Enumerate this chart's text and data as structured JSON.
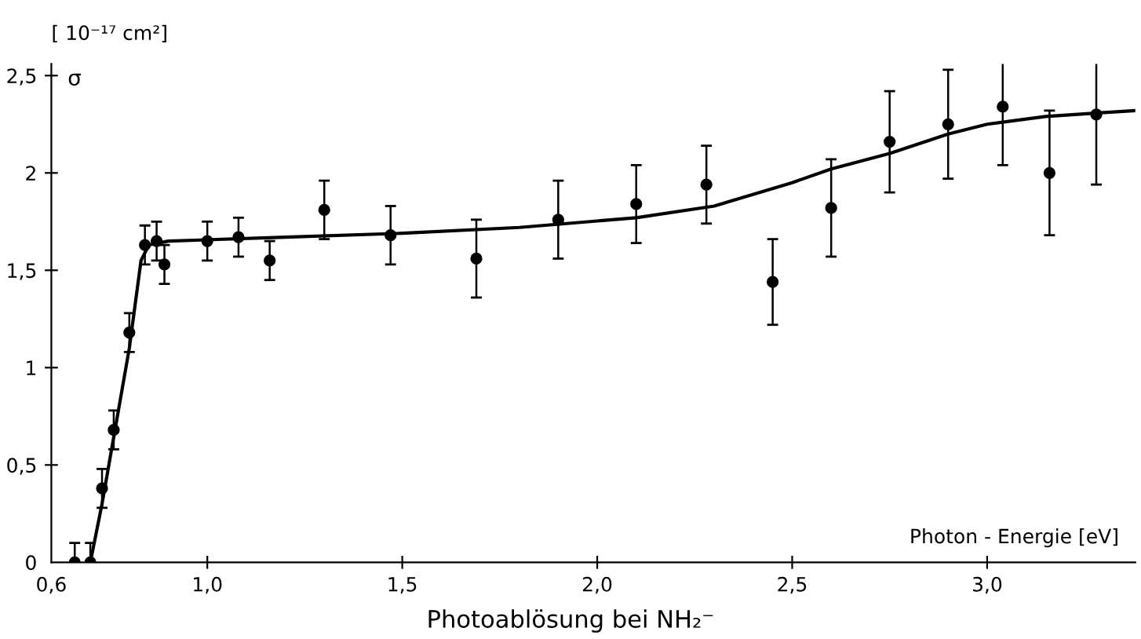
{
  "chart_data": {
    "type": "scatter",
    "title": "Photoablösung bei NH₂⁻",
    "xlabel": "Photon - Energie [eV]",
    "ylabel": "[ 10⁻¹⁷ cm²]",
    "annotations": [
      "σ"
    ],
    "xlim": [
      0.6,
      3.38
    ],
    "ylim": [
      0,
      2.56
    ],
    "xticks": [
      {
        "value": 0.6,
        "label": "0,6"
      },
      {
        "value": 1.0,
        "label": "1,0"
      },
      {
        "value": 1.5,
        "label": "1,5"
      },
      {
        "value": 2.0,
        "label": "2,0"
      },
      {
        "value": 2.5,
        "label": "2,5"
      },
      {
        "value": 3.0,
        "label": "3,0"
      }
    ],
    "yticks": [
      0,
      {
        "value": 0.5,
        "label": "0,5"
      },
      1,
      {
        "value": 1.5,
        "label": "1,5"
      },
      2,
      {
        "value": 2.5,
        "label": "2,5"
      }
    ],
    "grid": false,
    "legend": false,
    "series": [
      {
        "type": "scatter",
        "color": "#000000",
        "marker": "circle",
        "x": [
          0.66,
          0.7,
          0.73,
          0.76,
          0.8,
          0.84,
          0.87,
          0.89,
          1.0,
          1.08,
          1.16,
          1.3,
          1.47,
          1.69,
          1.9,
          2.1,
          2.28,
          2.45,
          2.6,
          2.75,
          2.9,
          3.04,
          3.16,
          3.28
        ],
        "values": [
          0,
          0,
          0.38,
          0.68,
          1.18,
          1.63,
          1.65,
          1.53,
          1.65,
          1.67,
          1.55,
          1.81,
          1.68,
          1.56,
          1.76,
          1.84,
          1.94,
          1.44,
          1.82,
          2.16,
          2.25,
          2.34,
          2.0,
          2.3
        ],
        "errors": [
          0.1,
          0.1,
          0.1,
          0.1,
          0.1,
          0.1,
          0.1,
          0.1,
          0.1,
          0.1,
          0.1,
          0.15,
          0.15,
          0.2,
          0.2,
          0.2,
          0.2,
          0.22,
          0.25,
          0.26,
          0.28,
          0.3,
          0.32,
          0.36
        ]
      },
      {
        "type": "line",
        "color": "#000000",
        "line_style": "solid",
        "x": [
          0.7,
          0.73,
          0.8,
          0.83,
          0.85,
          0.9,
          1.2,
          1.5,
          1.8,
          2.1,
          2.3,
          2.5,
          2.6,
          2.75,
          2.9,
          3.0,
          3.15,
          3.3,
          3.38
        ],
        "values": [
          0,
          0.3,
          1.1,
          1.55,
          1.63,
          1.65,
          1.67,
          1.69,
          1.72,
          1.77,
          1.83,
          1.95,
          2.02,
          2.1,
          2.2,
          2.25,
          2.29,
          2.31,
          2.32
        ]
      }
    ]
  }
}
